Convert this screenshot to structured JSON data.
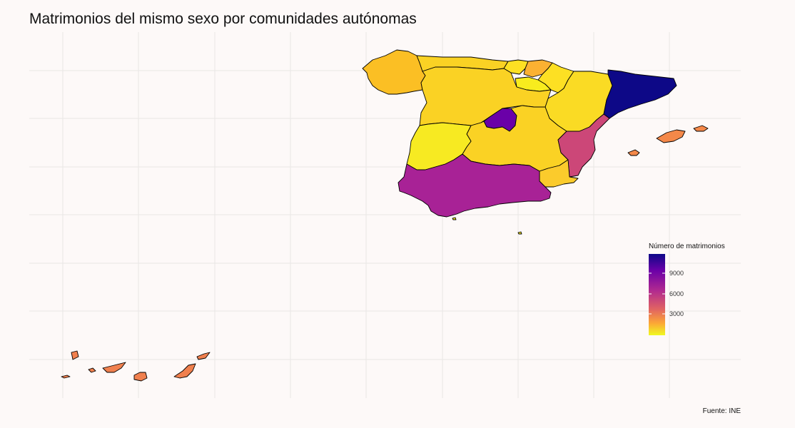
{
  "title": "Matrimonios del mismo sexo por comunidades autónomas",
  "source": "Fuente: INE",
  "legend": {
    "title": "Número de matrimonios",
    "ticks": [
      "9000",
      "6000",
      "3000"
    ],
    "tick_values": [
      9000,
      6000,
      3000
    ],
    "min": 0,
    "max": 11000,
    "palette": [
      "#0d0887",
      "#6a00a8",
      "#b12a90",
      "#e16462",
      "#fca636",
      "#f0f921"
    ],
    "palette_name": "plasma"
  },
  "regions": [
    {
      "name": "Galicia",
      "color": "#fbbf24"
    },
    {
      "name": "Asturias",
      "color": "#fad224"
    },
    {
      "name": "Cantabria",
      "color": "#fde023"
    },
    {
      "name": "País Vasco",
      "color": "#fbb132"
    },
    {
      "name": "Navarra",
      "color": "#fde023"
    },
    {
      "name": "La Rioja",
      "color": "#f8ec1e"
    },
    {
      "name": "Aragón",
      "color": "#fadb24"
    },
    {
      "name": "Cataluña",
      "color": "#0d0887"
    },
    {
      "name": "Castilla y León",
      "color": "#fad224"
    },
    {
      "name": "Madrid",
      "color": "#6a00a8"
    },
    {
      "name": "Castilla-La Mancha",
      "color": "#fad224"
    },
    {
      "name": "Extremadura",
      "color": "#f7ea22"
    },
    {
      "name": "Comunidad Valenciana",
      "color": "#cc4778"
    },
    {
      "name": "Región de Murcia",
      "color": "#fbcb2c"
    },
    {
      "name": "Andalucía",
      "color": "#a82296"
    },
    {
      "name": "Islas Baleares",
      "color": "#f48849"
    },
    {
      "name": "Canarias",
      "color": "#f0804e"
    },
    {
      "name": "Ceuta",
      "color": "#f7ea22"
    },
    {
      "name": "Melilla",
      "color": "#f7ea22"
    }
  ]
}
